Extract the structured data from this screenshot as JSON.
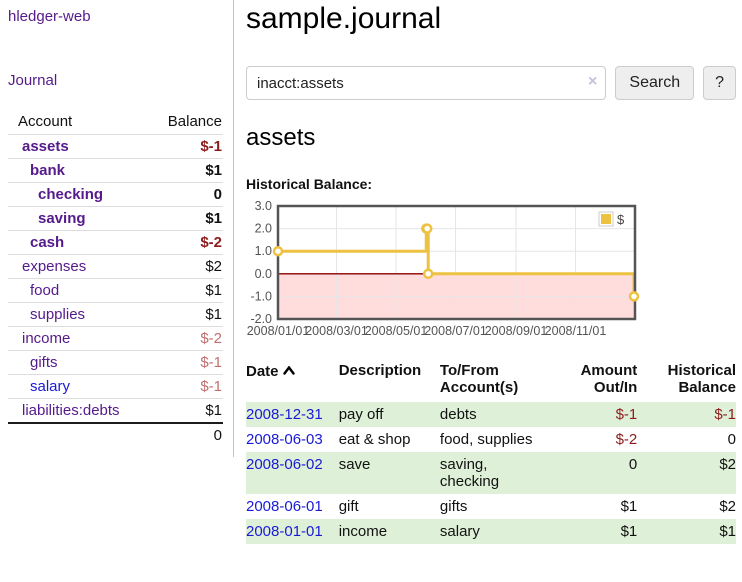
{
  "app": {
    "brand": "hledger-web"
  },
  "sidebar": {
    "journal_link": "Journal",
    "accounts": {
      "col_account": "Account",
      "col_balance": "Balance",
      "rows": [
        {
          "name": "assets",
          "balance": "$-1"
        },
        {
          "name": "bank",
          "balance": "$1"
        },
        {
          "name": "checking",
          "balance": "0"
        },
        {
          "name": "saving",
          "balance": "$1"
        },
        {
          "name": "cash",
          "balance": "$-2"
        },
        {
          "name": "expenses",
          "balance": "$2"
        },
        {
          "name": "food",
          "balance": "$1"
        },
        {
          "name": "supplies",
          "balance": "$1"
        },
        {
          "name": "income",
          "balance": "$-2"
        },
        {
          "name": "gifts",
          "balance": "$-1"
        },
        {
          "name": "salary",
          "balance": "$-1"
        },
        {
          "name": "liabilities:debts",
          "balance": "$1"
        }
      ],
      "total": "0"
    }
  },
  "header": {
    "title": "sample.journal"
  },
  "search": {
    "value": "inacct:assets",
    "clear_icon": "×",
    "search_button": "Search",
    "help_button": "?"
  },
  "account_page": {
    "heading": "assets",
    "chart_title": "Historical Balance:"
  },
  "chart_data": {
    "type": "line",
    "title": "Historical Balance:",
    "series": [
      {
        "name": "$",
        "color": "#edc240",
        "step": true,
        "points": [
          {
            "date": "2008-01-01",
            "x": 0,
            "y": 1
          },
          {
            "date": "2008-06-01",
            "x": 152,
            "y": 2
          },
          {
            "date": "2008-06-02",
            "x": 153,
            "y": 2
          },
          {
            "date": "2008-06-03",
            "x": 154,
            "y": 0
          },
          {
            "date": "2008-12-31",
            "x": 365,
            "y": -1
          }
        ]
      }
    ],
    "xlabel": "",
    "ylabel": "",
    "xlim": [
      0,
      366
    ],
    "ylim": [
      -2,
      3
    ],
    "x_ticks": [
      {
        "pos": 0,
        "label": "2008/01/01"
      },
      {
        "pos": 60,
        "label": "2008/03/01"
      },
      {
        "pos": 121,
        "label": "2008/05/01"
      },
      {
        "pos": 182,
        "label": "2008/07/01"
      },
      {
        "pos": 244,
        "label": "2008/09/01"
      },
      {
        "pos": 305,
        "label": "2008/11/01"
      }
    ],
    "y_ticks": [
      {
        "pos": 3,
        "label": "3.0"
      },
      {
        "pos": 2,
        "label": "2.0"
      },
      {
        "pos": 1,
        "label": "1.0"
      },
      {
        "pos": 0,
        "label": "0.0"
      },
      {
        "pos": -1,
        "label": "-1.0"
      },
      {
        "pos": -2,
        "label": "-2.0"
      }
    ],
    "grid": true,
    "legend": {
      "position": "top-right",
      "label": "$"
    },
    "negative_region_color": "#ffdddd",
    "zero_line_color": "#8b0000",
    "border_color": "#545454",
    "gridline_color": "#e6e6e6"
  },
  "register": {
    "headers": {
      "date": "Date",
      "description": "Description",
      "tofrom": "To/From Account(s)",
      "amount": "Amount Out/In",
      "balance": "Historical Balance"
    },
    "rows": [
      {
        "date": "2008-12-31",
        "description": "pay off",
        "tofrom": "debts",
        "amount": "$-1",
        "balance": "$-1"
      },
      {
        "date": "2008-06-03",
        "description": "eat & shop",
        "tofrom": "food, supplies",
        "amount": "$-2",
        "balance": "0"
      },
      {
        "date": "2008-06-02",
        "description": "save",
        "tofrom": "saving, checking",
        "amount": "0",
        "balance": "$2"
      },
      {
        "date": "2008-06-01",
        "description": "gift",
        "tofrom": "gifts",
        "amount": "$1",
        "balance": "$2"
      },
      {
        "date": "2008-01-01",
        "description": "income",
        "tofrom": "salary",
        "amount": "$1",
        "balance": "$1"
      }
    ]
  },
  "colors": {
    "accent_purple": "#551a8b",
    "link_blue": "#1a1ad6",
    "negative_strong": "#8c1c1c",
    "negative_soft": "#c26f6f",
    "stripe_green": "#dff0d8",
    "chart_line": "#edc240"
  }
}
